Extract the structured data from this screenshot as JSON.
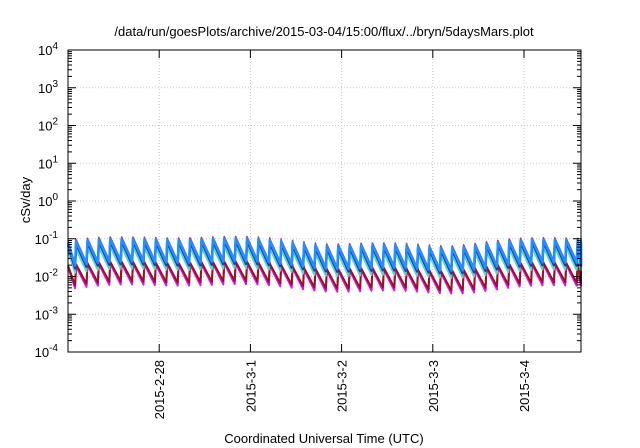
{
  "chart_data": {
    "type": "line",
    "title": "/data/run/goesPlots/archive/2015-03-04/15:00/flux/../bryn/5daysMars.plot",
    "xlabel": "Coordinated Universal Time (UTC)",
    "ylabel": "cSv/day",
    "yscale": "log",
    "ylim": [
      0.0001,
      10000
    ],
    "xlim": [
      "2015-02-27 00:00",
      "2015-03-04 15:00"
    ],
    "y_ticks": [
      {
        "value": 0.0001,
        "base": "10",
        "exp": "-4"
      },
      {
        "value": 0.001,
        "base": "10",
        "exp": "-3"
      },
      {
        "value": 0.01,
        "base": "10",
        "exp": "-2"
      },
      {
        "value": 0.1,
        "base": "10",
        "exp": "-1"
      },
      {
        "value": 1,
        "base": "10",
        "exp": "0"
      },
      {
        "value": 10,
        "base": "10",
        "exp": "1"
      },
      {
        "value": 100,
        "base": "10",
        "exp": "2"
      },
      {
        "value": 1000,
        "base": "10",
        "exp": "3"
      },
      {
        "value": 10000,
        "base": "10",
        "exp": "4"
      }
    ],
    "x_ticks": [
      {
        "label": "2015-2-28",
        "date": "2015-02-28"
      },
      {
        "label": "2015-3-1",
        "date": "2015-03-01"
      },
      {
        "label": "2015-3-2",
        "date": "2015-03-02"
      },
      {
        "label": "2015-3-3",
        "date": "2015-03-03"
      },
      {
        "label": "2015-3-4",
        "date": "2015-03-04"
      }
    ],
    "grid": true,
    "legend": "none",
    "series": [
      {
        "color": "#1e90ff",
        "peak": 0.08,
        "base": 0.02
      },
      {
        "color": "#2233cc",
        "peak": 0.07,
        "base": 0.017
      },
      {
        "color": "#d62728",
        "peak": 0.09,
        "base": 0.022
      },
      {
        "color": "#40e0d0",
        "peak": 0.05,
        "base": 0.013
      },
      {
        "color": "#8b1a1a",
        "peak": 0.02,
        "base": 0.006
      },
      {
        "color": "#ff00ff",
        "peak": 0.018,
        "base": 0.005
      }
    ],
    "sawtooth_period_hours": 3
  }
}
